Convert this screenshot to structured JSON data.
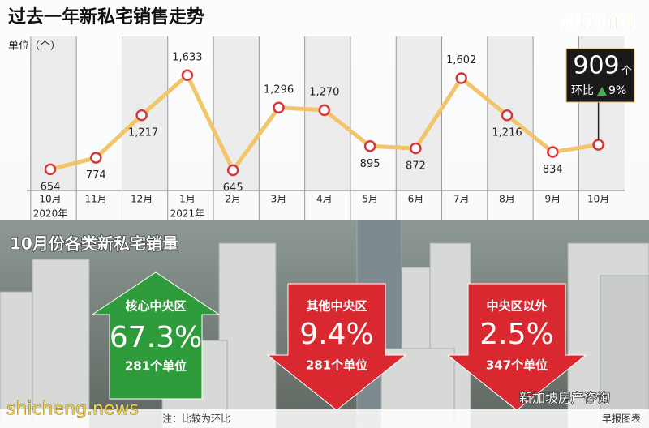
{
  "chart_data": {
    "type": "line",
    "title": "过去一年新私宅销售走势",
    "y_label": "单位（个）",
    "categories": [
      "10月",
      "11月",
      "12月",
      "1月",
      "2月",
      "3月",
      "4月",
      "5月",
      "6月",
      "7月",
      "8月",
      "9月",
      "10月"
    ],
    "category_years": [
      "2020年",
      null,
      null,
      "2021年",
      null,
      null,
      null,
      null,
      null,
      null,
      null,
      null,
      null
    ],
    "values": [
      654,
      774,
      1217,
      1633,
      645,
      1296,
      1270,
      895,
      872,
      1602,
      1216,
      834,
      909
    ],
    "value_labels": [
      "654",
      "774",
      "1,217",
      "1,633",
      "645",
      "1,296",
      "1,270",
      "895",
      "872",
      "1,602",
      "1,216",
      "834",
      "909"
    ],
    "color": "#f2c56b",
    "marker_color": "#d8363c",
    "ylim": [
      400,
      1800
    ],
    "callout": {
      "unit": "个",
      "label": "环比",
      "change": "9%"
    }
  },
  "regions": {
    "title": "10月份各类新私宅销量",
    "items": [
      {
        "name": "核心中央区",
        "change": "67.3%",
        "units": "281个单位",
        "trend": "up",
        "color": "#2f9c3c"
      },
      {
        "name": "其他中央区",
        "change": "9.4%",
        "units": "281个单位",
        "trend": "down",
        "color": "#d9282f"
      },
      {
        "name": "中央区以外",
        "change": "2.5%",
        "units": "347个单位",
        "trend": "down",
        "color": "#d9282f"
      }
    ]
  },
  "footer": {
    "note": "注：比较为环比",
    "credit": "早报图表"
  },
  "watermarks": {
    "top": "狮城新闻",
    "bottom_left": "shicheng.news",
    "bottom_right": "新加坡房产咨询"
  }
}
